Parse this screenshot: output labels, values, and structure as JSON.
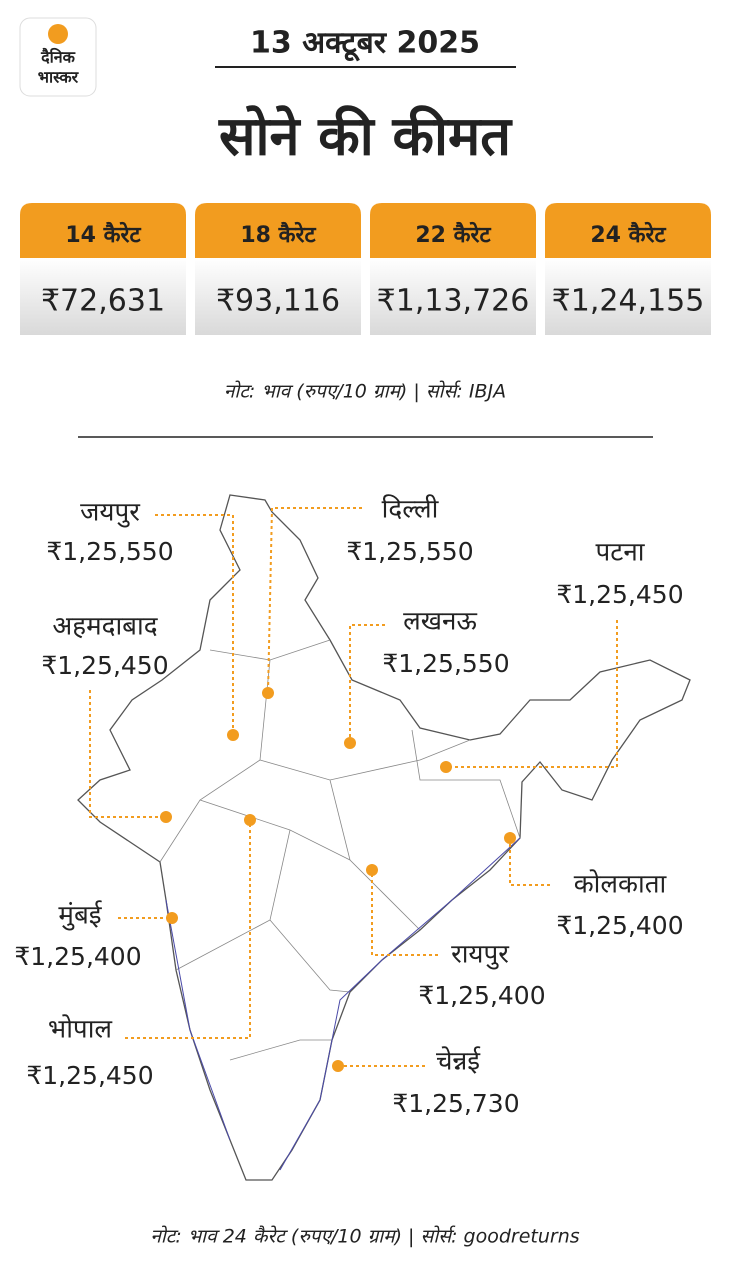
{
  "logo": {
    "line1": "दैनिक",
    "line2": "भास्कर"
  },
  "date": "13 अक्टूबर 2025",
  "title": "सोने की कीमत",
  "table": {
    "headers": [
      "14 कैरेट",
      "18 कैरेट",
      "22 कैरेट",
      "24 कैरेट"
    ],
    "prices": [
      "₹72,631",
      "₹93,116",
      "₹1,13,726",
      "₹1,24,155"
    ]
  },
  "table_note": "नोट: भाव (रुपए/10 ग्राम)  |  सोर्स: IBJA",
  "cities": [
    {
      "name": "जयपुर",
      "price": "₹1,25,550"
    },
    {
      "name": "दिल्ली",
      "price": "₹1,25,550"
    },
    {
      "name": "पटना",
      "price": "₹1,25,450"
    },
    {
      "name": "अहमदाबाद",
      "price": "₹1,25,450"
    },
    {
      "name": "लखनऊ",
      "price": "₹1,25,550"
    },
    {
      "name": "कोलकाता",
      "price": "₹1,25,400"
    },
    {
      "name": "मुंबई",
      "price": "₹1,25,400"
    },
    {
      "name": "रायपुर",
      "price": "₹1,25,400"
    },
    {
      "name": "भोपाल",
      "price": "₹1,25,450"
    },
    {
      "name": "चेन्नई",
      "price": "₹1,25,730"
    }
  ],
  "map_note": "नोट: भाव 24 कैरेट (रुपए/10 ग्राम)  |  सोर्स: goodreturns"
}
